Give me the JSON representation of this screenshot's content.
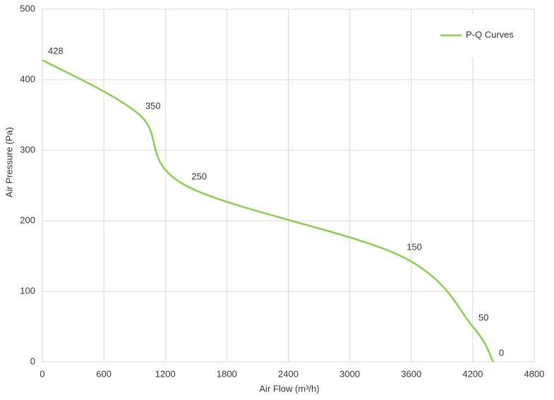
{
  "chart_data": {
    "type": "line",
    "x_label": "Air Flow  (m³/h)",
    "y_label": "Air Pressure  (Pa)",
    "x": [
      0,
      950,
      1400,
      3500,
      4200,
      4400
    ],
    "series": [
      {
        "name": "P-Q Curves",
        "color": "#8cd04a",
        "values": [
          428,
          350,
          250,
          150,
          50,
          0
        ]
      }
    ],
    "xlim": [
      0,
      4800
    ],
    "xticks": [
      0,
      600,
      1200,
      1800,
      2400,
      3000,
      3600,
      4200,
      4800
    ],
    "ylim": [
      0,
      500
    ],
    "yticks": [
      0,
      100,
      200,
      300,
      400,
      500
    ],
    "grid": true,
    "legend": "upper right"
  }
}
